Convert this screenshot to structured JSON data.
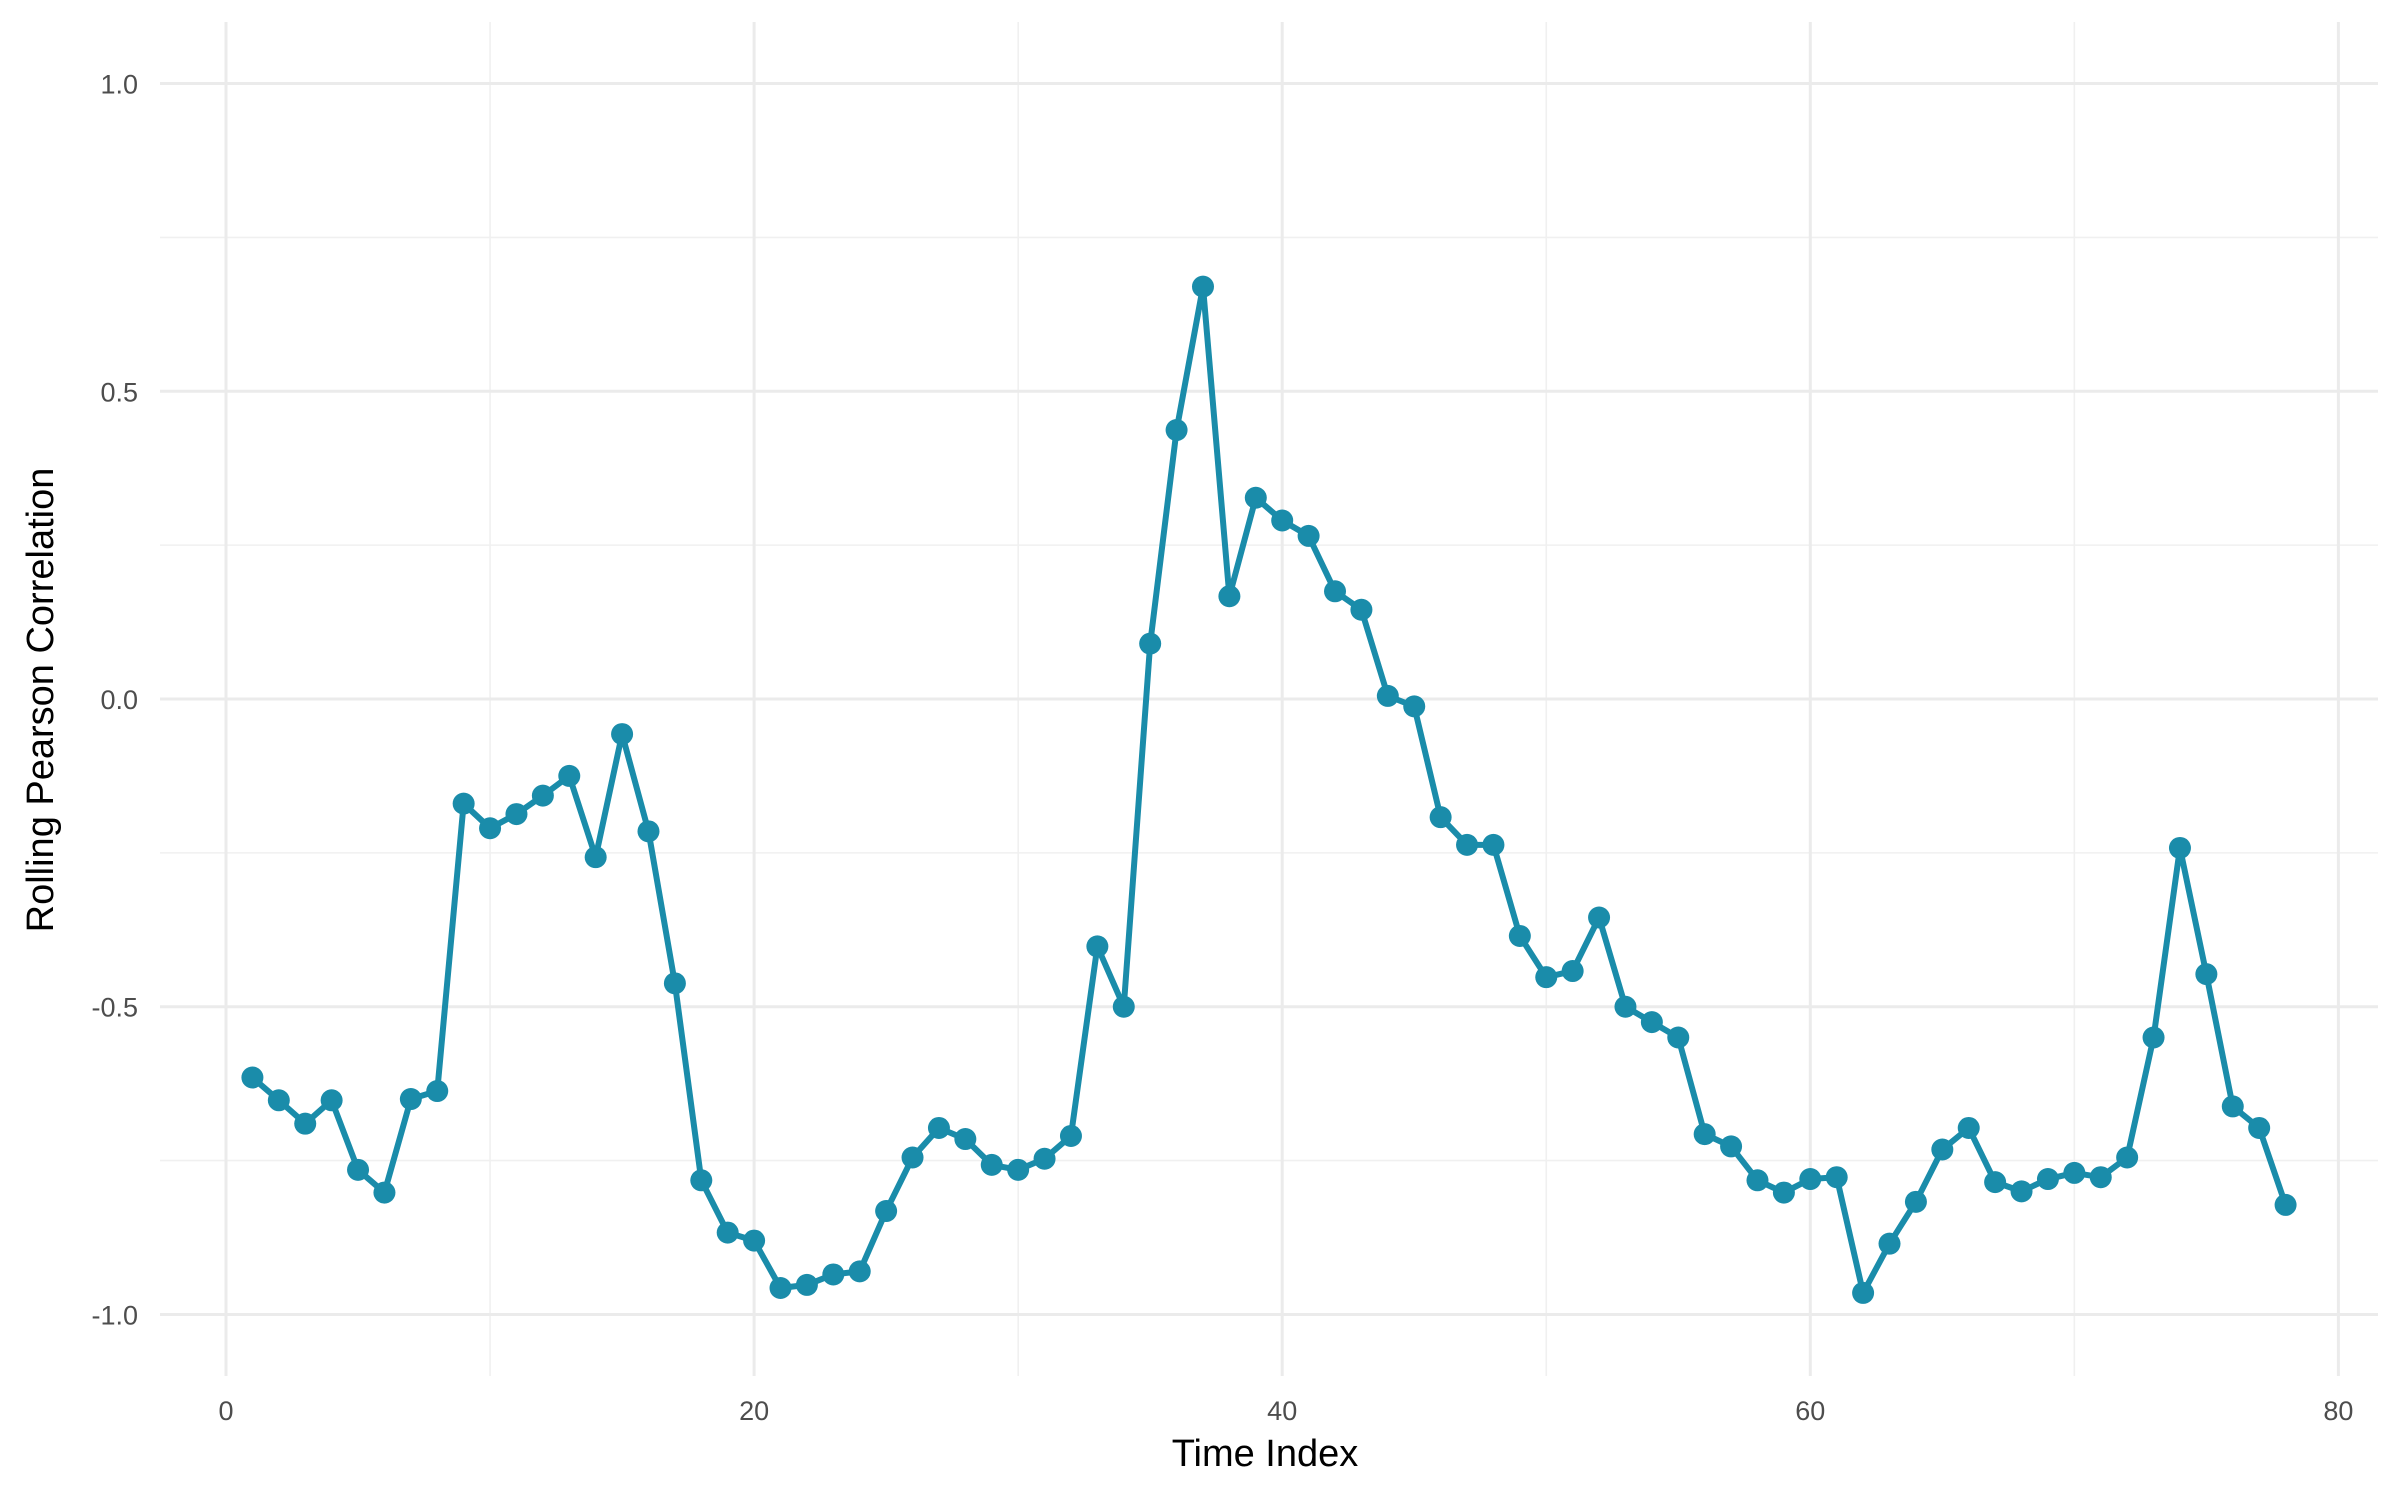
{
  "chart_data": {
    "type": "line",
    "title": "",
    "xlabel": "Time Index",
    "ylabel": "Rolling Pearson Correlation",
    "xlim": [
      -2.5,
      81.5
    ],
    "ylim": [
      -1.1,
      1.1
    ],
    "x_ticks": [
      0,
      20,
      40,
      60,
      80
    ],
    "x_tick_labels": [
      "0",
      "20",
      "40",
      "60",
      "80"
    ],
    "y_ticks": [
      -1.0,
      -0.5,
      0.0,
      0.5,
      1.0
    ],
    "y_tick_labels": [
      "-1.0",
      "-0.5",
      "0.0",
      "0.5",
      "1.0"
    ],
    "grid": true,
    "legend": "none",
    "color": "#1a8caa",
    "series": [
      {
        "x": [
          1,
          2,
          3,
          4,
          5,
          6,
          7,
          8,
          9,
          10,
          11,
          12,
          13,
          14,
          15,
          16,
          17,
          18,
          19,
          20,
          21,
          22,
          23,
          24,
          25,
          26,
          27,
          28,
          29,
          30,
          31,
          32,
          33,
          34,
          35,
          36,
          37,
          38,
          39,
          40,
          41,
          42,
          43,
          44,
          45,
          46,
          47,
          48,
          49,
          50,
          51,
          52,
          53,
          54,
          55,
          56,
          57,
          58,
          59,
          60,
          61,
          62,
          63,
          64,
          65,
          66,
          67,
          68,
          69,
          70,
          71,
          72,
          73,
          74,
          75,
          76,
          77,
          78
        ],
        "values": [
          -0.615,
          -0.652,
          -0.69,
          -0.652,
          -0.765,
          -0.802,
          -0.65,
          -0.637,
          -0.17,
          -0.21,
          -0.187,
          -0.157,
          -0.125,
          -0.257,
          -0.057,
          -0.215,
          -0.462,
          -0.782,
          -0.867,
          -0.88,
          -0.957,
          -0.952,
          -0.935,
          -0.93,
          -0.832,
          -0.745,
          -0.697,
          -0.715,
          -0.757,
          -0.765,
          -0.747,
          -0.71,
          -0.402,
          -0.5,
          0.09,
          0.437,
          0.67,
          0.167,
          0.327,
          0.29,
          0.265,
          0.175,
          0.145,
          0.005,
          -0.012,
          -0.192,
          -0.237,
          -0.237,
          -0.385,
          -0.452,
          -0.442,
          -0.355,
          -0.5,
          -0.525,
          -0.55,
          -0.707,
          -0.727,
          -0.782,
          -0.802,
          -0.78,
          -0.777,
          -0.965,
          -0.885,
          -0.817,
          -0.732,
          -0.697,
          -0.785,
          -0.8,
          -0.78,
          -0.77,
          -0.777,
          -0.745,
          -0.55,
          -0.242,
          -0.447,
          -0.662,
          -0.697,
          -0.822
        ]
      }
    ]
  }
}
